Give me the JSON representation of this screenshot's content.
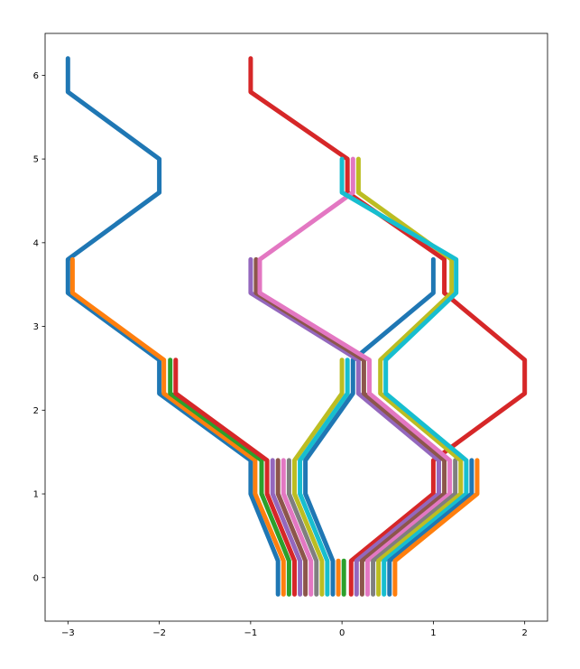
{
  "chart_data": {
    "type": "line",
    "title": "",
    "xlabel": "",
    "ylabel": "",
    "xlim": [
      -3.25,
      2.25
    ],
    "ylim": [
      -0.52,
      6.5
    ],
    "x_ticks": [
      {
        "value": -3,
        "label": "−3"
      },
      {
        "value": -2,
        "label": "−2"
      },
      {
        "value": -1,
        "label": "−1"
      },
      {
        "value": 0,
        "label": "0"
      },
      {
        "value": 1,
        "label": "1"
      },
      {
        "value": 2,
        "label": "2"
      }
    ],
    "y_ticks": [
      {
        "value": 0,
        "label": "0"
      },
      {
        "value": 1,
        "label": "1"
      },
      {
        "value": 2,
        "label": "2"
      },
      {
        "value": 3,
        "label": "3"
      },
      {
        "value": 4,
        "label": "4"
      },
      {
        "value": 5,
        "label": "5"
      },
      {
        "value": 6,
        "label": "6"
      }
    ],
    "grid": false,
    "series": [
      {
        "color": "#1f77b4",
        "points": [
          [
            -3,
            6.2
          ],
          [
            -3,
            5.8
          ],
          [
            -2,
            5
          ],
          [
            -2,
            4.6
          ],
          [
            -3,
            3.8
          ],
          [
            -3,
            3.4
          ],
          [
            -2,
            2.6
          ],
          [
            -2,
            2.2
          ],
          [
            -1,
            1.4
          ],
          [
            -1,
            1
          ],
          [
            -0.7,
            0.2
          ],
          [
            -0.7,
            -0.2
          ]
        ]
      },
      {
        "color": "#ff7f0e",
        "points": [
          [
            -2.95,
            3.8
          ],
          [
            -2.95,
            3.4
          ],
          [
            -1.95,
            2.6
          ],
          [
            -1.95,
            2.2
          ],
          [
            -0.95,
            1.4
          ],
          [
            -0.95,
            1
          ],
          [
            -0.64,
            0.2
          ],
          [
            -0.64,
            -0.2
          ]
        ]
      },
      {
        "color": "#2ca02c",
        "points": [
          [
            -1.88,
            2.6
          ],
          [
            -1.88,
            2.2
          ],
          [
            -0.88,
            1.4
          ],
          [
            -0.88,
            1
          ],
          [
            -0.58,
            0.2
          ],
          [
            -0.58,
            -0.2
          ]
        ]
      },
      {
        "color": "#d62728",
        "points": [
          [
            -1.82,
            2.6
          ],
          [
            -1.82,
            2.2
          ],
          [
            -0.82,
            1.4
          ],
          [
            -0.82,
            1
          ],
          [
            -0.52,
            0.2
          ],
          [
            -0.52,
            -0.2
          ]
        ]
      },
      {
        "color": "#9467bd",
        "points": [
          [
            -0.76,
            1.4
          ],
          [
            -0.76,
            1
          ],
          [
            -0.46,
            0.2
          ],
          [
            -0.46,
            -0.2
          ]
        ]
      },
      {
        "color": "#8c564b",
        "points": [
          [
            -0.7,
            1.4
          ],
          [
            -0.7,
            1
          ],
          [
            -0.4,
            0.2
          ],
          [
            -0.4,
            -0.2
          ]
        ]
      },
      {
        "color": "#e377c2",
        "points": [
          [
            -0.64,
            1.4
          ],
          [
            -0.64,
            1
          ],
          [
            -0.34,
            0.2
          ],
          [
            -0.34,
            -0.2
          ]
        ]
      },
      {
        "color": "#7f7f7f",
        "points": [
          [
            -0.58,
            1.4
          ],
          [
            -0.58,
            1
          ],
          [
            -0.28,
            0.2
          ],
          [
            -0.28,
            -0.2
          ]
        ]
      },
      {
        "color": "#bcbd22",
        "points": [
          [
            0,
            2.6
          ],
          [
            0,
            2.2
          ],
          [
            -0.52,
            1.4
          ],
          [
            -0.52,
            1
          ],
          [
            -0.22,
            0.2
          ],
          [
            -0.22,
            -0.2
          ]
        ]
      },
      {
        "color": "#17becf",
        "points": [
          [
            0.06,
            2.6
          ],
          [
            0.06,
            2.2
          ],
          [
            -0.46,
            1.4
          ],
          [
            -0.46,
            1
          ],
          [
            -0.16,
            0.2
          ],
          [
            -0.16,
            -0.2
          ]
        ]
      },
      {
        "color": "#1f77b4",
        "points": [
          [
            1,
            3.8
          ],
          [
            1,
            3.4
          ],
          [
            0.12,
            2.6
          ],
          [
            0.12,
            2.2
          ],
          [
            -0.4,
            1.4
          ],
          [
            -0.4,
            1
          ],
          [
            -0.1,
            0.2
          ],
          [
            -0.1,
            -0.2
          ]
        ]
      },
      {
        "color": "#ff7f0e",
        "points": [
          [
            -0.04,
            0.2
          ],
          [
            -0.04,
            -0.2
          ]
        ]
      },
      {
        "color": "#2ca02c",
        "points": [
          [
            0.02,
            0.2
          ],
          [
            0.02,
            -0.2
          ]
        ]
      },
      {
        "color": "#d62728",
        "points": [
          [
            -1,
            6.2
          ],
          [
            -1,
            5.8
          ],
          [
            0.06,
            5
          ],
          [
            0.06,
            4.6
          ],
          [
            1.12,
            3.8
          ],
          [
            1.12,
            3.4
          ],
          [
            2,
            2.6
          ],
          [
            2,
            2.2
          ],
          [
            1,
            1.4
          ],
          [
            1,
            1
          ],
          [
            0.1,
            0.2
          ],
          [
            0.1,
            -0.2
          ]
        ]
      },
      {
        "color": "#9467bd",
        "points": [
          [
            -1,
            3.8
          ],
          [
            -1,
            3.4
          ],
          [
            0.18,
            2.6
          ],
          [
            0.18,
            2.2
          ],
          [
            1.06,
            1.4
          ],
          [
            1.06,
            1
          ],
          [
            0.16,
            0.2
          ],
          [
            0.16,
            -0.2
          ]
        ]
      },
      {
        "color": "#8c564b",
        "points": [
          [
            -0.94,
            3.8
          ],
          [
            -0.94,
            3.4
          ],
          [
            0.24,
            2.6
          ],
          [
            0.24,
            2.2
          ],
          [
            1.12,
            1.4
          ],
          [
            1.12,
            1
          ],
          [
            0.22,
            0.2
          ],
          [
            0.22,
            -0.2
          ]
        ]
      },
      {
        "color": "#e377c2",
        "points": [
          [
            0.12,
            5
          ],
          [
            0.12,
            4.6
          ],
          [
            -0.9,
            3.8
          ],
          [
            -0.9,
            3.4
          ],
          [
            0.3,
            2.6
          ],
          [
            0.3,
            2.2
          ],
          [
            1.18,
            1.4
          ],
          [
            1.18,
            1
          ],
          [
            0.28,
            0.2
          ],
          [
            0.28,
            -0.2
          ]
        ]
      },
      {
        "color": "#7f7f7f",
        "points": [
          [
            1.24,
            1.4
          ],
          [
            1.24,
            1
          ],
          [
            0.34,
            0.2
          ],
          [
            0.34,
            -0.2
          ]
        ]
      },
      {
        "color": "#bcbd22",
        "points": [
          [
            0.18,
            5
          ],
          [
            0.18,
            4.6
          ],
          [
            1.2,
            3.8
          ],
          [
            1.2,
            3.4
          ],
          [
            0.42,
            2.6
          ],
          [
            0.42,
            2.2
          ],
          [
            1.3,
            1.4
          ],
          [
            1.3,
            1
          ],
          [
            0.4,
            0.2
          ],
          [
            0.4,
            -0.2
          ]
        ]
      },
      {
        "color": "#17becf",
        "points": [
          [
            0,
            5
          ],
          [
            0,
            4.6
          ],
          [
            1.25,
            3.8
          ],
          [
            1.25,
            3.4
          ],
          [
            0.48,
            2.6
          ],
          [
            0.48,
            2.2
          ],
          [
            1.36,
            1.4
          ],
          [
            1.36,
            1
          ],
          [
            0.46,
            0.2
          ],
          [
            0.46,
            -0.2
          ]
        ]
      },
      {
        "color": "#1f77b4",
        "points": [
          [
            1.42,
            1.4
          ],
          [
            1.42,
            1
          ],
          [
            0.52,
            0.2
          ],
          [
            0.52,
            -0.2
          ]
        ]
      },
      {
        "color": "#ff7f0e",
        "points": [
          [
            1.48,
            1.4
          ],
          [
            1.48,
            1
          ],
          [
            0.58,
            0.2
          ],
          [
            0.58,
            -0.2
          ]
        ]
      }
    ]
  }
}
